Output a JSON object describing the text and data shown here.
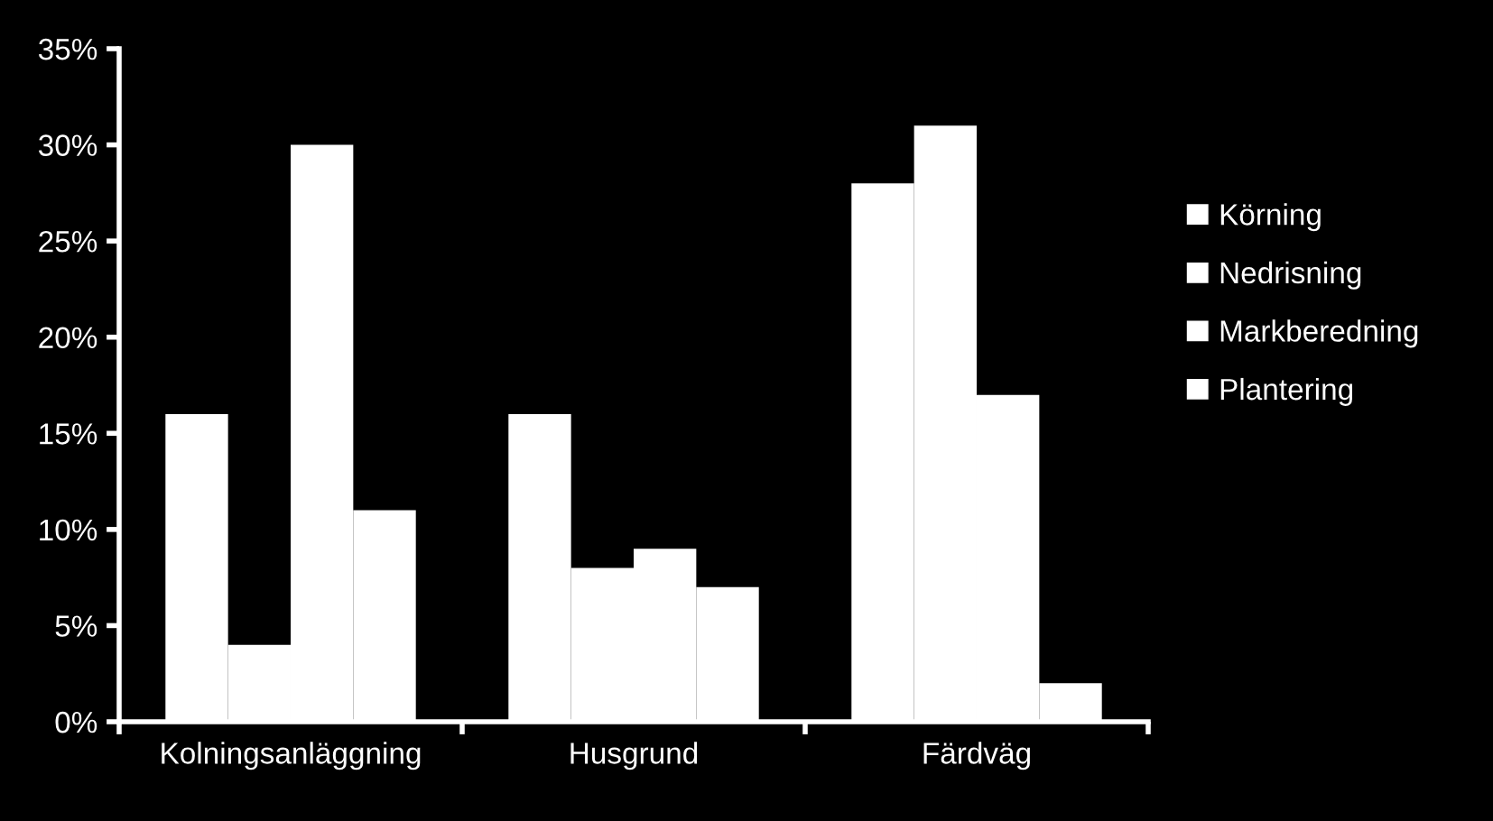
{
  "chart_data": {
    "type": "bar",
    "categories": [
      "Kolningsanläggning",
      "Husgrund",
      "Färdväg"
    ],
    "series": [
      {
        "name": "Körning",
        "color": "#ffffff",
        "values": [
          16,
          16,
          28
        ]
      },
      {
        "name": "Nedrisning",
        "color": "#ffffff",
        "values": [
          4,
          8,
          31
        ]
      },
      {
        "name": "Markberedning",
        "color": "#ffffff",
        "values": [
          30,
          9,
          17
        ]
      },
      {
        "name": "Plantering",
        "color": "#ffffff",
        "values": [
          11,
          7,
          2
        ]
      }
    ],
    "ylim": [
      0,
      35
    ],
    "yticks": [
      {
        "value": 0,
        "label": "0%"
      },
      {
        "value": 5,
        "label": "5%"
      },
      {
        "value": 10,
        "label": "10%"
      },
      {
        "value": 15,
        "label": "15%"
      },
      {
        "value": 20,
        "label": "20%"
      },
      {
        "value": 25,
        "label": "25%"
      },
      {
        "value": 30,
        "label": "30%"
      },
      {
        "value": 35,
        "label": "35%"
      }
    ],
    "legend": "right",
    "grid": false
  }
}
